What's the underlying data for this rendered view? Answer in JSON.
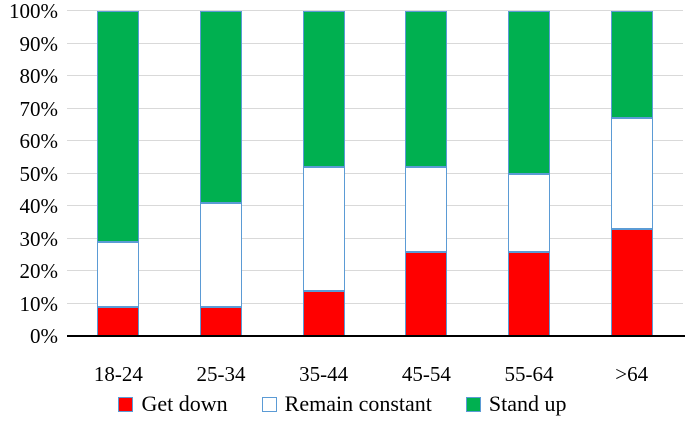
{
  "chart_data": {
    "type": "bar",
    "variant": "100%-stacked-column",
    "title": "",
    "xlabel": "",
    "ylabel": "",
    "categories": [
      "18-24",
      "25-34",
      "35-44",
      "45-54",
      "55-64",
      ">64"
    ],
    "series": [
      {
        "name": "Get down",
        "color": "#ff0000",
        "values": [
          9,
          9,
          14,
          26,
          26,
          33
        ]
      },
      {
        "name": "Remain constant",
        "color": "#ffffff",
        "values": [
          20,
          32,
          38,
          26,
          24,
          34
        ]
      },
      {
        "name": "Stand up",
        "color": "#00b050",
        "values": [
          71,
          59,
          48,
          48,
          50,
          33
        ]
      }
    ],
    "ylim": [
      0,
      100
    ],
    "ytick_step": 10,
    "ytick_labels": [
      "0%",
      "10%",
      "20%",
      "30%",
      "40%",
      "50%",
      "60%",
      "70%",
      "80%",
      "90%",
      "100%"
    ],
    "grid": true,
    "legend_position": "bottom",
    "colors": {
      "bar_border": "#5b9bd5",
      "gridline": "#d9d9d9",
      "axis": "#000000",
      "background": "#ffffff",
      "text": "#000000"
    }
  }
}
